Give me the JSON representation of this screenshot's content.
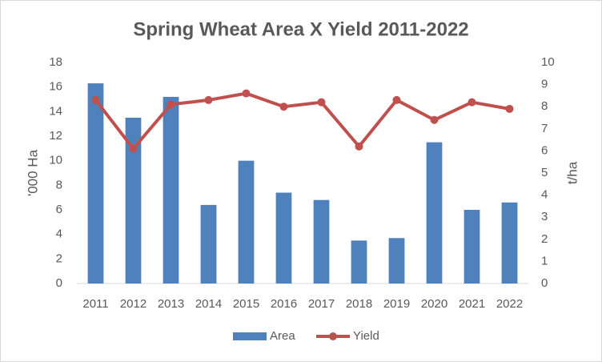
{
  "chart_data": {
    "type": "bar-line",
    "title": "Spring Wheat Area X Yield 2011-2022",
    "y_label": "'000 Ha",
    "y2_label": "t/ha",
    "categories": [
      "2011",
      "2012",
      "2013",
      "2014",
      "2015",
      "2016",
      "2017",
      "2018",
      "2019",
      "2020",
      "2021",
      "2022"
    ],
    "series": [
      {
        "name": "Area",
        "type": "bar",
        "color": "#4f81bd",
        "values": [
          16.3,
          13.5,
          15.2,
          6.4,
          10.0,
          7.4,
          6.8,
          3.5,
          3.7,
          11.5,
          6.0,
          6.6
        ]
      },
      {
        "name": "Yield",
        "type": "line",
        "axis": "y2",
        "color": "#c0504d",
        "values": [
          8.3,
          6.1,
          8.1,
          8.3,
          8.6,
          8.0,
          8.2,
          6.2,
          8.3,
          7.4,
          8.2,
          7.9
        ]
      }
    ],
    "ylim": [
      0,
      18
    ],
    "yticks": [
      0,
      2,
      4,
      6,
      8,
      10,
      12,
      14,
      16,
      18
    ],
    "y2lim": [
      0,
      10
    ],
    "y2ticks": [
      0,
      1,
      2,
      3,
      4,
      5,
      6,
      7,
      8,
      9,
      10
    ],
    "legend": "bottom"
  }
}
